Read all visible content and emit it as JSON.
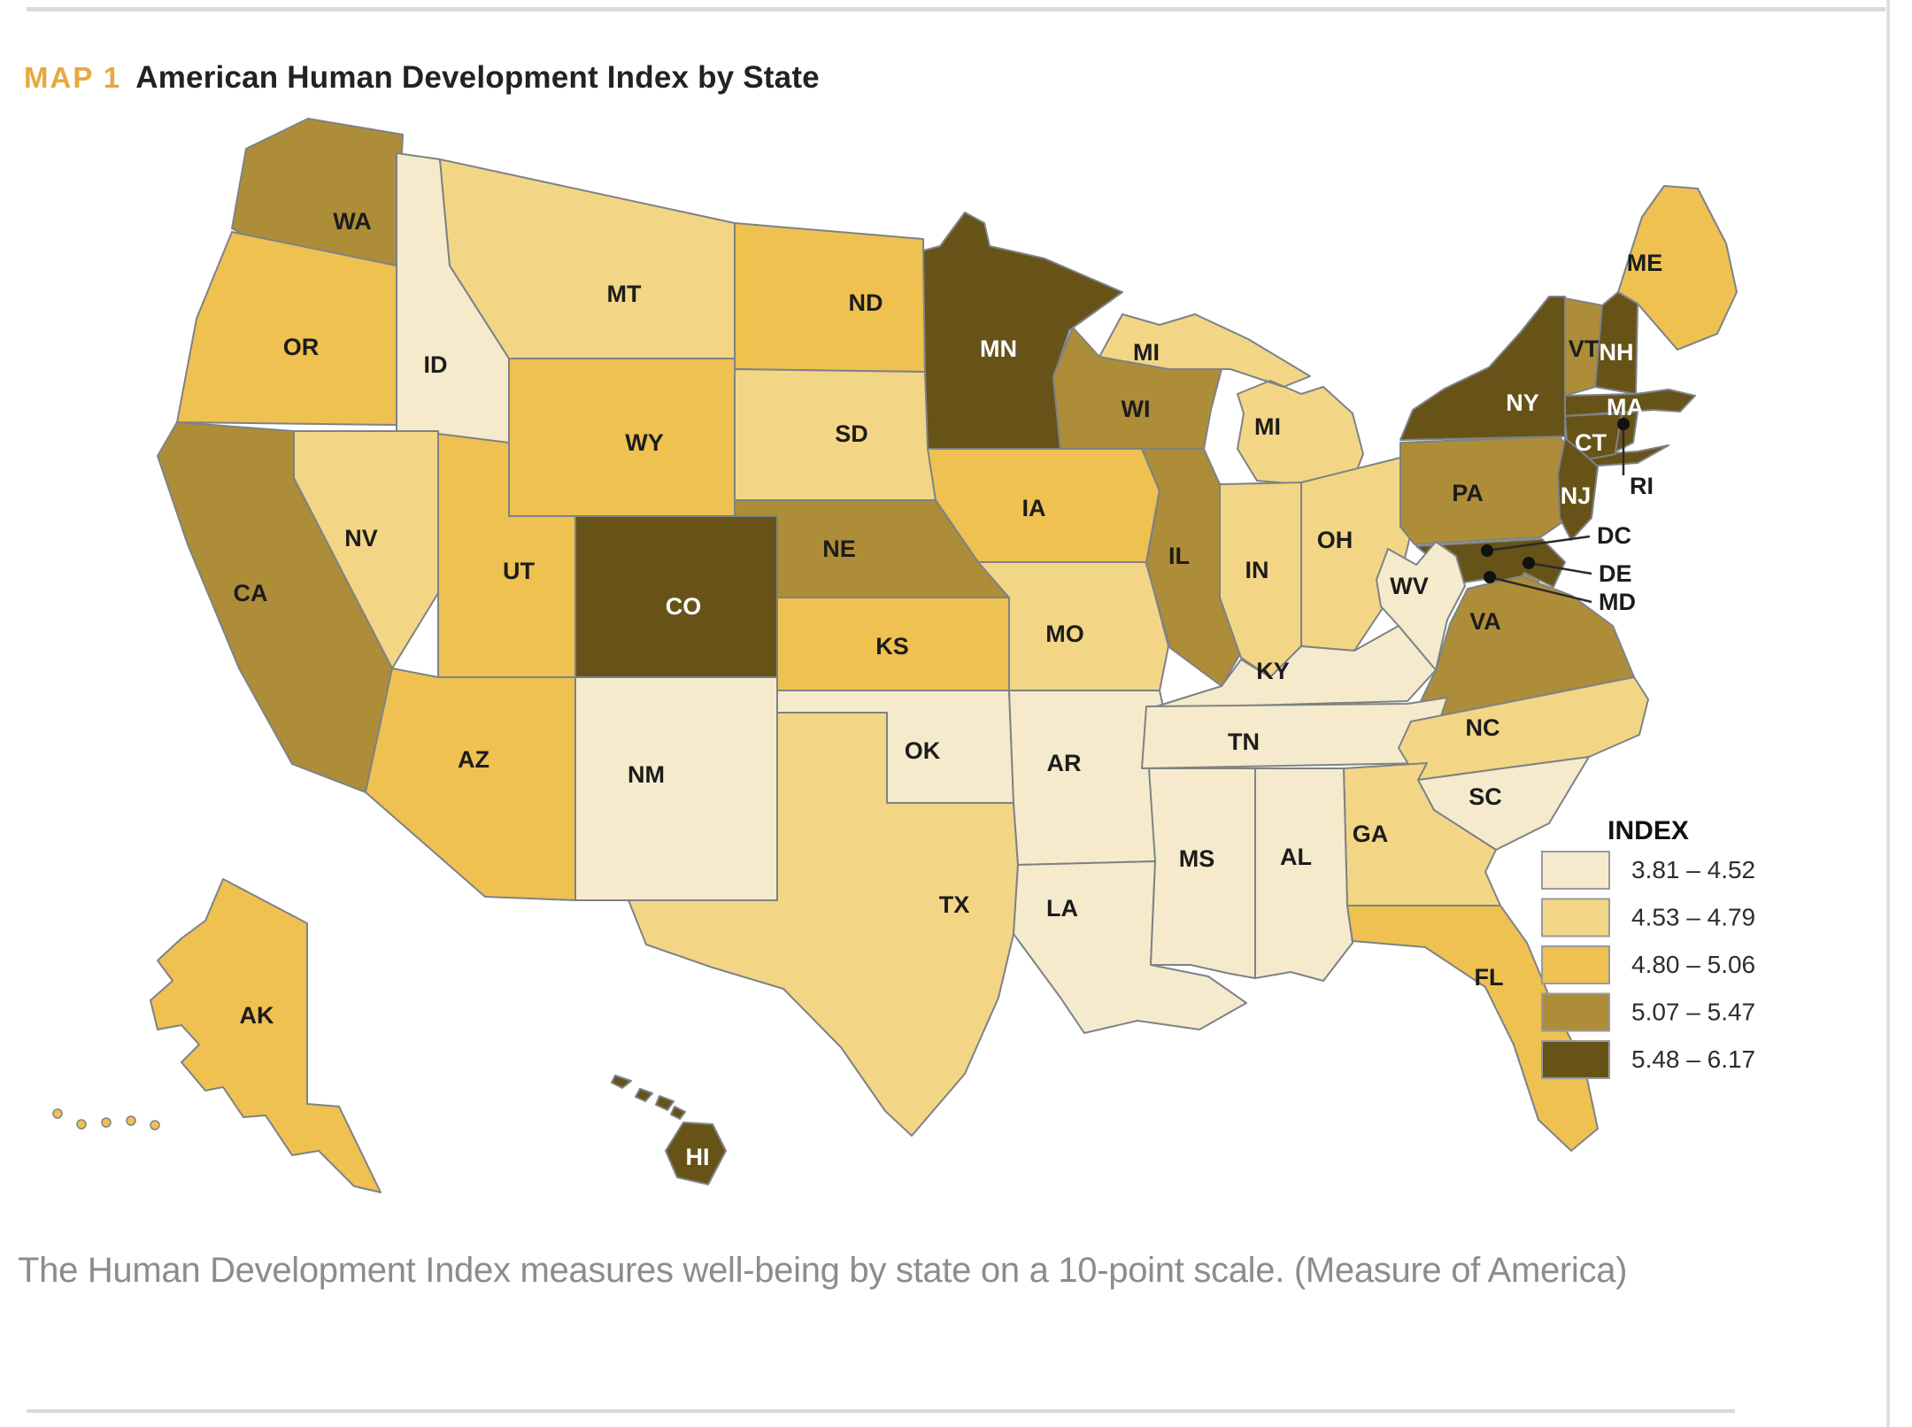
{
  "figure": {
    "tag": "MAP 1",
    "title": "American Human Development Index by State",
    "caption": "The Human Development Index measures well-being by state on a 10-point scale. (Measure of America)"
  },
  "legend": {
    "title": "INDEX"
  },
  "chart_data": {
    "type": "choropleth",
    "title": "American Human Development Index by State",
    "scale_note": "10-point scale",
    "source": "Measure of America",
    "classes": [
      {
        "label": "3.81 – 4.52",
        "min": 3.81,
        "max": 4.52,
        "color": "#f5ebcc"
      },
      {
        "label": "4.53 – 4.79",
        "min": 4.53,
        "max": 4.79,
        "color": "#f3d685"
      },
      {
        "label": "4.80 – 5.06",
        "min": 4.8,
        "max": 5.06,
        "color": "#eec150"
      },
      {
        "label": "5.07 – 5.47",
        "min": 5.07,
        "max": 5.47,
        "color": "#ae8d38"
      },
      {
        "label": "5.48 – 6.17",
        "min": 5.48,
        "max": 6.17,
        "color": "#675318"
      }
    ],
    "states": [
      {
        "abbr": "WA",
        "class": 4
      },
      {
        "abbr": "OR",
        "class": 3
      },
      {
        "abbr": "CA",
        "class": 4
      },
      {
        "abbr": "ID",
        "class": 1
      },
      {
        "abbr": "MT",
        "class": 2
      },
      {
        "abbr": "WY",
        "class": 3
      },
      {
        "abbr": "NV",
        "class": 2
      },
      {
        "abbr": "UT",
        "class": 3
      },
      {
        "abbr": "CO",
        "class": 5
      },
      {
        "abbr": "AZ",
        "class": 3
      },
      {
        "abbr": "NM",
        "class": 1
      },
      {
        "abbr": "ND",
        "class": 3
      },
      {
        "abbr": "SD",
        "class": 2
      },
      {
        "abbr": "NE",
        "class": 4
      },
      {
        "abbr": "KS",
        "class": 3
      },
      {
        "abbr": "OK",
        "class": 1
      },
      {
        "abbr": "TX",
        "class": 2
      },
      {
        "abbr": "MN",
        "class": 5
      },
      {
        "abbr": "IA",
        "class": 3
      },
      {
        "abbr": "MO",
        "class": 2
      },
      {
        "abbr": "AR",
        "class": 1
      },
      {
        "abbr": "LA",
        "class": 1
      },
      {
        "abbr": "WI",
        "class": 4
      },
      {
        "abbr": "IL",
        "class": 4
      },
      {
        "abbr": "MI",
        "class": 2
      },
      {
        "abbr": "IN",
        "class": 2
      },
      {
        "abbr": "OH",
        "class": 2
      },
      {
        "abbr": "PA",
        "class": 4
      },
      {
        "abbr": "NY",
        "class": 5
      },
      {
        "abbr": "VT",
        "class": 4
      },
      {
        "abbr": "NH",
        "class": 5
      },
      {
        "abbr": "ME",
        "class": 3
      },
      {
        "abbr": "MA",
        "class": 5
      },
      {
        "abbr": "CT",
        "class": 5
      },
      {
        "abbr": "RI",
        "class": 5
      },
      {
        "abbr": "NJ",
        "class": 5
      },
      {
        "abbr": "DE",
        "class": 4
      },
      {
        "abbr": "MD",
        "class": 5
      },
      {
        "abbr": "DC",
        "class": 5
      },
      {
        "abbr": "WV",
        "class": 1
      },
      {
        "abbr": "VA",
        "class": 4
      },
      {
        "abbr": "KY",
        "class": 1
      },
      {
        "abbr": "TN",
        "class": 1
      },
      {
        "abbr": "NC",
        "class": 2
      },
      {
        "abbr": "SC",
        "class": 1
      },
      {
        "abbr": "GA",
        "class": 2
      },
      {
        "abbr": "AL",
        "class": 1
      },
      {
        "abbr": "MS",
        "class": 1
      },
      {
        "abbr": "FL",
        "class": 3
      },
      {
        "abbr": "AK",
        "class": 3
      },
      {
        "abbr": "HI",
        "class": 5
      }
    ]
  }
}
